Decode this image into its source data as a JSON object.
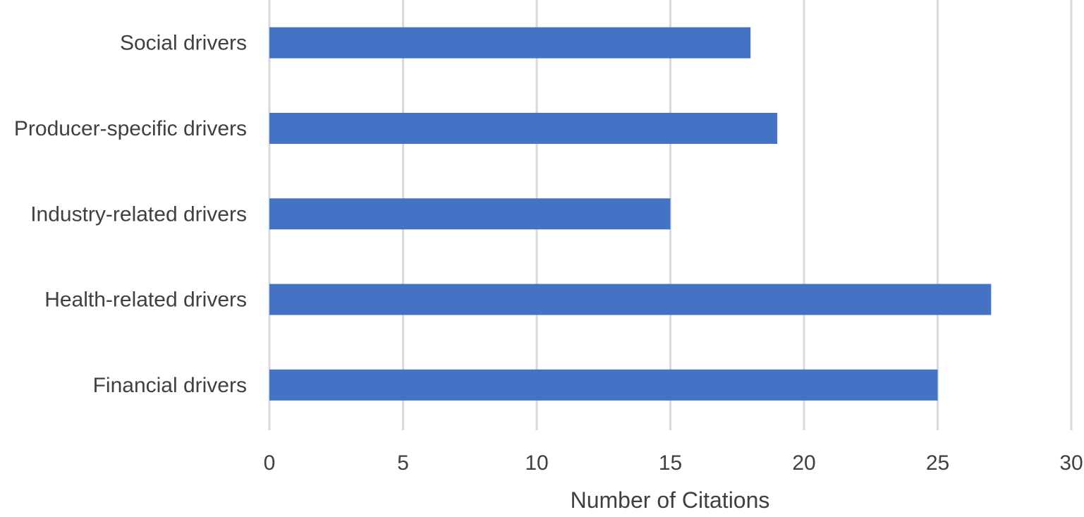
{
  "chart_data": {
    "type": "bar",
    "orientation": "horizontal",
    "categories": [
      "Social drivers",
      "Producer-specific drivers",
      "Industry-related drivers",
      "Health-related drivers",
      "Financial drivers"
    ],
    "values": [
      18,
      19,
      15,
      27,
      25
    ],
    "title": "",
    "xlabel": "Number of Citations",
    "ylabel": "",
    "xlim": [
      0,
      30
    ],
    "x_ticks": [
      "0",
      "5",
      "10",
      "15",
      "20",
      "25",
      "30"
    ],
    "grid": "vertical",
    "legend": "none",
    "colors": {
      "bar": "#4472C4",
      "grid": "#D9D9D9",
      "text": "#404040"
    }
  }
}
